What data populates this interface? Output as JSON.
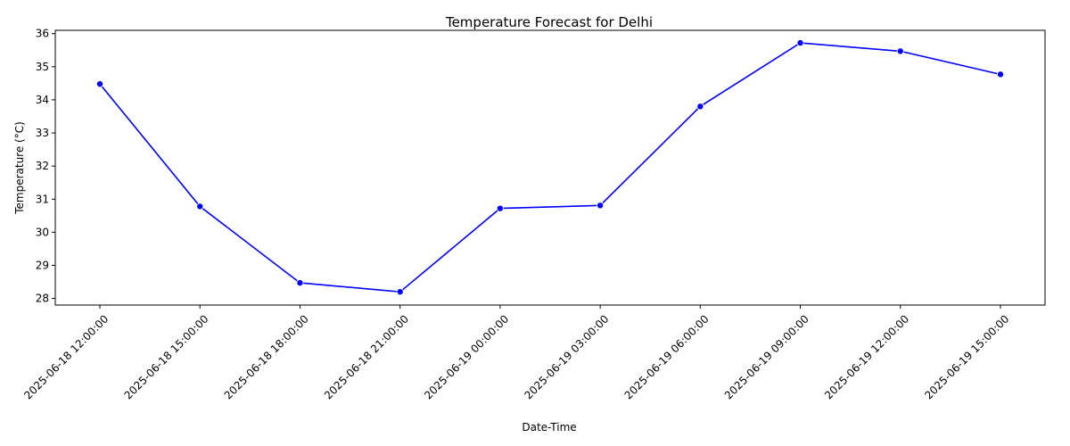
{
  "chart_data": {
    "type": "line",
    "title": "Temperature Forecast for Delhi",
    "xlabel": "Date-Time",
    "ylabel": "Temperature (°C)",
    "x": [
      "2025-06-18 12:00:00",
      "2025-06-18 15:00:00",
      "2025-06-18 18:00:00",
      "2025-06-18 21:00:00",
      "2025-06-19 00:00:00",
      "2025-06-19 03:00:00",
      "2025-06-19 06:00:00",
      "2025-06-19 09:00:00",
      "2025-06-19 12:00:00",
      "2025-06-19 15:00:00"
    ],
    "series": [
      {
        "values": [
          34.48,
          30.78,
          28.47,
          28.2,
          30.72,
          30.81,
          33.8,
          35.72,
          35.47,
          34.77
        ],
        "color": "#0000ff"
      }
    ],
    "ylim": [
      27.8,
      36.1
    ],
    "yticks": [
      28,
      29,
      30,
      31,
      32,
      33,
      34,
      35,
      36
    ],
    "grid": false,
    "legend": "none"
  }
}
